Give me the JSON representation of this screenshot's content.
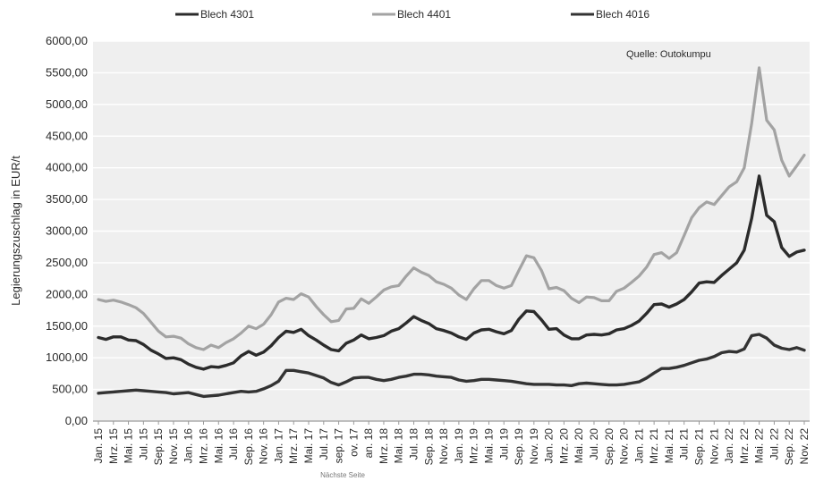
{
  "chart_data": {
    "type": "line",
    "ylabel": "Legierungszuschlag in EUR/t",
    "source": "Quelle: Outokumpu",
    "footer": "Nächste Seite",
    "ylim": [
      0,
      6000
    ],
    "y_ticks": [
      "0,00",
      "500,00",
      "1000,00",
      "1500,00",
      "2000,00",
      "2500,00",
      "3000,00",
      "3500,00",
      "4000,00",
      "4500,00",
      "5000,00",
      "5500,00",
      "6000,00"
    ],
    "grid": true,
    "legend_position": "top",
    "x": [
      "Jan. 15",
      "Feb. 15",
      "Mrz. 15",
      "Apr. 15",
      "Mai. 15",
      "Jun. 15",
      "Jul. 15",
      "Aug. 15",
      "Sep. 15",
      "Okt. 15",
      "Nov. 15",
      "Dez. 15",
      "Jan. 16",
      "Feb. 16",
      "Mrz. 16",
      "Apr. 16",
      "Mai. 16",
      "Jun. 16",
      "Jul. 16",
      "Aug. 16",
      "Sep. 16",
      "Okt. 16",
      "Nov. 16",
      "Dez. 16",
      "Jan. 17",
      "Feb. 17",
      "Mrz. 17",
      "Apr. 17",
      "Mai. 17",
      "Jun. 17",
      "Jul. 17",
      "Aug. 17",
      "Sep. 17",
      "Okt. 17",
      "Nov. 17",
      "Dez. 17",
      "Jan. 18",
      "Feb. 18",
      "Mrz. 18",
      "Apr. 18",
      "Mai. 18",
      "Jun. 18",
      "Jul. 18",
      "Aug. 18",
      "Sep. 18",
      "Okt. 18",
      "Nov. 18",
      "Dez. 18",
      "Jan. 19",
      "Feb. 19",
      "Mrz. 19",
      "Apr. 19",
      "Mai. 19",
      "Jun. 19",
      "Jul. 19",
      "Aug. 19",
      "Sep. 19",
      "Okt. 19",
      "Nov. 19",
      "Dez. 19",
      "Jan. 20",
      "Feb. 20",
      "Mrz. 20",
      "Apr. 20",
      "Mai. 20",
      "Jun. 20",
      "Jul. 20",
      "Aug. 20",
      "Sep. 20",
      "Okt. 20",
      "Nov. 20",
      "Dez. 20",
      "Jan. 21",
      "Feb. 21",
      "Mrz. 21",
      "Apr. 21",
      "Mai. 21",
      "Jun. 21",
      "Jul. 21",
      "Aug. 21",
      "Sep. 21",
      "Okt. 21",
      "Nov. 21",
      "Dez. 21",
      "Jan. 22",
      "Feb. 22",
      "Mrz. 22",
      "Apr. 22",
      "Mai. 22",
      "Jun. 22",
      "Jul. 22",
      "Aug. 22",
      "Sep. 22",
      "Okt. 22",
      "Nov. 22"
    ],
    "x_tick_labels": [
      "Jan. 15",
      "Mrz. 15",
      "Mai. 15",
      "Jul. 15",
      "Sep. 15",
      "Nov. 15",
      "Jan. 16",
      "Mrz. 16",
      "Mai. 16",
      "Jul. 16",
      "Sep. 16",
      "Nov. 16",
      "Jan. 17",
      "Mrz. 17",
      "Mai. 17",
      "Jul. 17",
      "sep. 17",
      "ov. 17",
      "an. 18",
      "Mrz. 18",
      "Mai. 18",
      "Jul. 18",
      "Sep. 18",
      "Nov. 18",
      "Jan. 19",
      "Mrz. 19",
      "Mai. 19",
      "Jul. 19",
      "Sep. 19",
      "Nov. 19",
      "Jan. 20",
      "Mrz. 20",
      "Mai. 20",
      "Jul. 20",
      "Sep. 20",
      "Nov. 20",
      "Jan. 21",
      "Mrz. 21",
      "Mai. 21",
      "Jul. 21",
      "Sep. 21",
      "Nov. 21",
      "Jan. 22",
      "Mrz. 22",
      "Mai. 22",
      "Jul. 22",
      "Sep. 22",
      "Nov. 22"
    ],
    "series": [
      {
        "name": "Blech 4301",
        "color": "#2b2b2b",
        "values": [
          1320,
          1290,
          1330,
          1330,
          1280,
          1270,
          1210,
          1120,
          1060,
          990,
          1000,
          970,
          900,
          850,
          820,
          860,
          850,
          880,
          920,
          1030,
          1100,
          1040,
          1090,
          1190,
          1320,
          1420,
          1400,
          1450,
          1350,
          1280,
          1200,
          1130,
          1110,
          1230,
          1280,
          1360,
          1300,
          1320,
          1350,
          1420,
          1460,
          1550,
          1650,
          1590,
          1540,
          1460,
          1430,
          1390,
          1330,
          1290,
          1390,
          1440,
          1450,
          1410,
          1380,
          1430,
          1610,
          1740,
          1730,
          1600,
          1450,
          1460,
          1360,
          1300,
          1300,
          1360,
          1370,
          1360,
          1380,
          1440,
          1460,
          1510,
          1580,
          1700,
          1840,
          1850,
          1800,
          1850,
          1920,
          2040,
          2180,
          2200,
          2190,
          2300,
          2400,
          2500,
          2700,
          3200,
          3870,
          3250,
          3150,
          2740,
          2600,
          2670,
          2700
        ]
      },
      {
        "name": "Blech 4401",
        "color": "#a3a3a3",
        "values": [
          1920,
          1890,
          1910,
          1880,
          1840,
          1790,
          1700,
          1560,
          1420,
          1330,
          1340,
          1310,
          1220,
          1160,
          1130,
          1200,
          1160,
          1240,
          1300,
          1390,
          1500,
          1460,
          1530,
          1680,
          1880,
          1940,
          1920,
          2010,
          1960,
          1810,
          1680,
          1570,
          1590,
          1770,
          1780,
          1930,
          1860,
          1960,
          2070,
          2120,
          2140,
          2290,
          2420,
          2350,
          2300,
          2200,
          2160,
          2100,
          1990,
          1920,
          2090,
          2220,
          2220,
          2140,
          2100,
          2140,
          2380,
          2610,
          2580,
          2380,
          2090,
          2110,
          2060,
          1940,
          1870,
          1960,
          1950,
          1900,
          1900,
          2050,
          2100,
          2190,
          2290,
          2430,
          2630,
          2660,
          2570,
          2660,
          2930,
          3210,
          3370,
          3460,
          3420,
          3560,
          3700,
          3780,
          4000,
          4700,
          5580,
          4750,
          4600,
          4120,
          3870,
          4030,
          4200
        ]
      },
      {
        "name": "Blech 4016",
        "color": "#333333",
        "values": [
          440,
          450,
          460,
          470,
          480,
          490,
          480,
          470,
          460,
          450,
          430,
          440,
          450,
          420,
          390,
          400,
          410,
          430,
          450,
          470,
          460,
          470,
          510,
          560,
          630,
          800,
          800,
          780,
          760,
          720,
          680,
          610,
          570,
          620,
          680,
          690,
          690,
          660,
          640,
          660,
          690,
          710,
          740,
          740,
          730,
          710,
          700,
          690,
          650,
          630,
          640,
          660,
          660,
          650,
          640,
          630,
          610,
          590,
          580,
          580,
          580,
          570,
          570,
          560,
          590,
          600,
          590,
          580,
          570,
          570,
          580,
          600,
          620,
          680,
          760,
          830,
          830,
          850,
          880,
          920,
          960,
          980,
          1020,
          1080,
          1100,
          1090,
          1140,
          1350,
          1370,
          1310,
          1200,
          1150,
          1130,
          1160,
          1120
        ]
      }
    ]
  }
}
